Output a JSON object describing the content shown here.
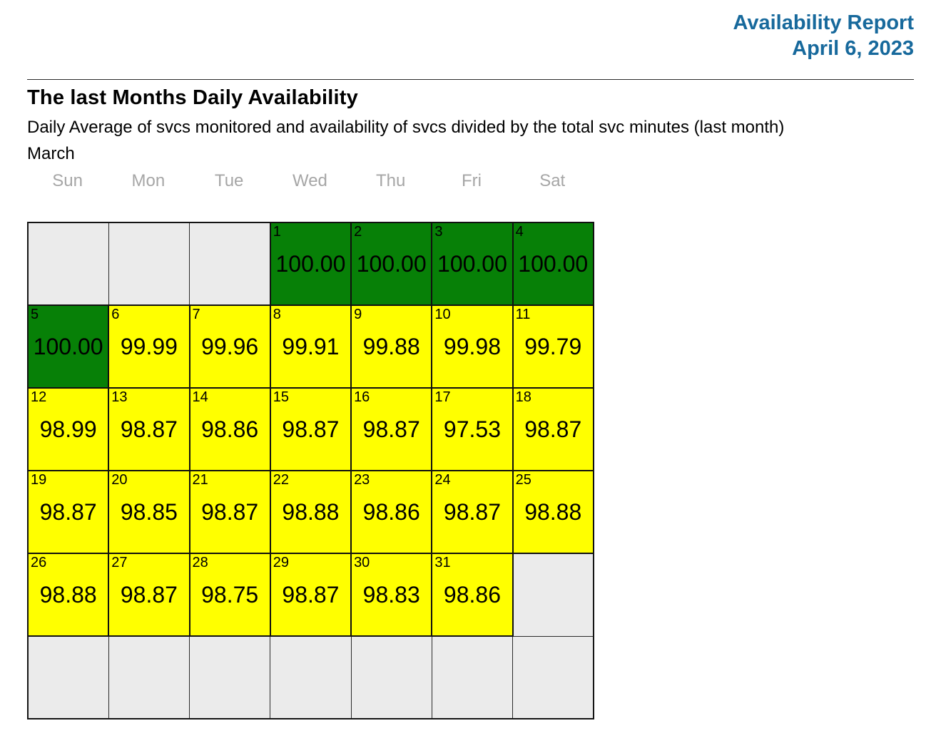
{
  "header": {
    "title": "Availability Report",
    "date": "April 6, 2023",
    "accent_color": "#17699c"
  },
  "report": {
    "heading": "The last Months Daily Availability",
    "subtitle": "Daily Average of svcs monitored and availability of svcs divided by the total svc minutes (last month)",
    "month_label": "March"
  },
  "calendar": {
    "weekdays": [
      "Sun",
      "Mon",
      "Tue",
      "Wed",
      "Thu",
      "Fri",
      "Sat"
    ],
    "colors": {
      "green": "#078007",
      "yellow": "#ffff00",
      "empty": "#ebebeb",
      "weekday_label": "#a6a6a6"
    },
    "weeks": [
      [
        null,
        null,
        null,
        {
          "day": "1",
          "value": "100.00",
          "color": "green"
        },
        {
          "day": "2",
          "value": "100.00",
          "color": "green"
        },
        {
          "day": "3",
          "value": "100.00",
          "color": "green"
        },
        {
          "day": "4",
          "value": "100.00",
          "color": "green"
        }
      ],
      [
        {
          "day": "5",
          "value": "100.00",
          "color": "green"
        },
        {
          "day": "6",
          "value": "99.99",
          "color": "yellow"
        },
        {
          "day": "7",
          "value": "99.96",
          "color": "yellow"
        },
        {
          "day": "8",
          "value": "99.91",
          "color": "yellow"
        },
        {
          "day": "9",
          "value": "99.88",
          "color": "yellow"
        },
        {
          "day": "10",
          "value": "99.98",
          "color": "yellow"
        },
        {
          "day": "11",
          "value": "99.79",
          "color": "yellow"
        }
      ],
      [
        {
          "day": "12",
          "value": "98.99",
          "color": "yellow"
        },
        {
          "day": "13",
          "value": "98.87",
          "color": "yellow"
        },
        {
          "day": "14",
          "value": "98.86",
          "color": "yellow"
        },
        {
          "day": "15",
          "value": "98.87",
          "color": "yellow"
        },
        {
          "day": "16",
          "value": "98.87",
          "color": "yellow"
        },
        {
          "day": "17",
          "value": "97.53",
          "color": "yellow"
        },
        {
          "day": "18",
          "value": "98.87",
          "color": "yellow"
        }
      ],
      [
        {
          "day": "19",
          "value": "98.87",
          "color": "yellow"
        },
        {
          "day": "20",
          "value": "98.85",
          "color": "yellow"
        },
        {
          "day": "21",
          "value": "98.87",
          "color": "yellow"
        },
        {
          "day": "22",
          "value": "98.88",
          "color": "yellow"
        },
        {
          "day": "23",
          "value": "98.86",
          "color": "yellow"
        },
        {
          "day": "24",
          "value": "98.87",
          "color": "yellow"
        },
        {
          "day": "25",
          "value": "98.88",
          "color": "yellow"
        }
      ],
      [
        {
          "day": "26",
          "value": "98.88",
          "color": "yellow"
        },
        {
          "day": "27",
          "value": "98.87",
          "color": "yellow"
        },
        {
          "day": "28",
          "value": "98.75",
          "color": "yellow"
        },
        {
          "day": "29",
          "value": "98.87",
          "color": "yellow"
        },
        {
          "day": "30",
          "value": "98.83",
          "color": "yellow"
        },
        {
          "day": "31",
          "value": "98.86",
          "color": "yellow"
        },
        null
      ],
      [
        null,
        null,
        null,
        null,
        null,
        null,
        null
      ]
    ]
  },
  "chart_data": {
    "type": "heatmap",
    "subtype": "calendar-month",
    "title": "The last Months Daily Availability",
    "subtitle": "Daily Average of svcs monitored and availability of svcs divided by the total svc minutes (last month)",
    "month": "March",
    "x_columns": [
      "Sun",
      "Mon",
      "Tue",
      "Wed",
      "Thu",
      "Fri",
      "Sat"
    ],
    "first_day_weekday": "Wed",
    "value_unit": "availability percent",
    "days": [
      {
        "day": 1,
        "value": 100.0,
        "color": "green"
      },
      {
        "day": 2,
        "value": 100.0,
        "color": "green"
      },
      {
        "day": 3,
        "value": 100.0,
        "color": "green"
      },
      {
        "day": 4,
        "value": 100.0,
        "color": "green"
      },
      {
        "day": 5,
        "value": 100.0,
        "color": "green"
      },
      {
        "day": 6,
        "value": 99.99,
        "color": "yellow"
      },
      {
        "day": 7,
        "value": 99.96,
        "color": "yellow"
      },
      {
        "day": 8,
        "value": 99.91,
        "color": "yellow"
      },
      {
        "day": 9,
        "value": 99.88,
        "color": "yellow"
      },
      {
        "day": 10,
        "value": 99.98,
        "color": "yellow"
      },
      {
        "day": 11,
        "value": 99.79,
        "color": "yellow"
      },
      {
        "day": 12,
        "value": 98.99,
        "color": "yellow"
      },
      {
        "day": 13,
        "value": 98.87,
        "color": "yellow"
      },
      {
        "day": 14,
        "value": 98.86,
        "color": "yellow"
      },
      {
        "day": 15,
        "value": 98.87,
        "color": "yellow"
      },
      {
        "day": 16,
        "value": 98.87,
        "color": "yellow"
      },
      {
        "day": 17,
        "value": 97.53,
        "color": "yellow"
      },
      {
        "day": 18,
        "value": 98.87,
        "color": "yellow"
      },
      {
        "day": 19,
        "value": 98.87,
        "color": "yellow"
      },
      {
        "day": 20,
        "value": 98.85,
        "color": "yellow"
      },
      {
        "day": 21,
        "value": 98.87,
        "color": "yellow"
      },
      {
        "day": 22,
        "value": 98.88,
        "color": "yellow"
      },
      {
        "day": 23,
        "value": 98.86,
        "color": "yellow"
      },
      {
        "day": 24,
        "value": 98.87,
        "color": "yellow"
      },
      {
        "day": 25,
        "value": 98.88,
        "color": "yellow"
      },
      {
        "day": 26,
        "value": 98.88,
        "color": "yellow"
      },
      {
        "day": 27,
        "value": 98.87,
        "color": "yellow"
      },
      {
        "day": 28,
        "value": 98.75,
        "color": "yellow"
      },
      {
        "day": 29,
        "value": 98.87,
        "color": "yellow"
      },
      {
        "day": 30,
        "value": 98.83,
        "color": "yellow"
      },
      {
        "day": 31,
        "value": 98.86,
        "color": "yellow"
      }
    ],
    "color_rule": "value of 100.00 shown green; values below 100.00 shown yellow; cells outside the month shown gray"
  }
}
